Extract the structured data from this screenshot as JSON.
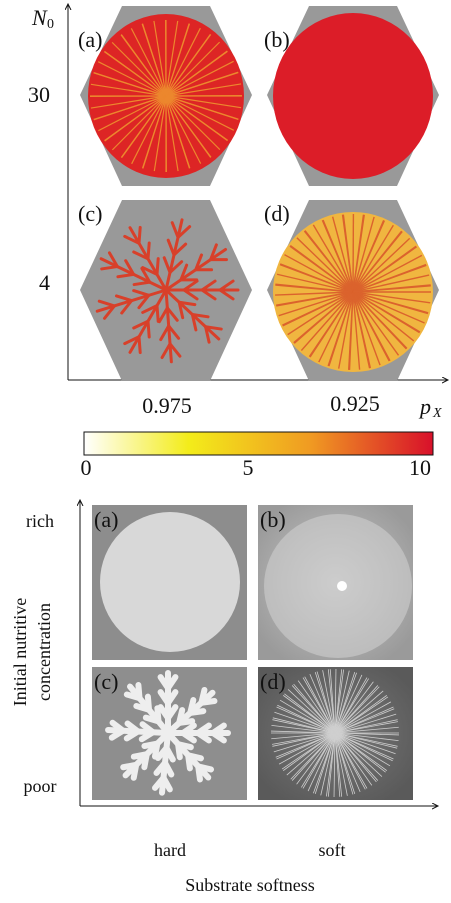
{
  "simulation": {
    "y_axis_label": "N",
    "y_axis_label_subscript": "0",
    "y_tick_labels": [
      "30",
      "4"
    ],
    "x_tick_labels": [
      "0.975",
      "0.925"
    ],
    "x_axis_label": "p",
    "x_axis_label_subscript": "X",
    "panel_labels": [
      "(a)",
      "(b)",
      "(c)",
      "(d)"
    ]
  },
  "colorbar": {
    "tick_labels": [
      "0",
      "5",
      "10"
    ]
  },
  "experiment": {
    "y_tick_labels": [
      "rich",
      "poor"
    ],
    "y_axis_title_lines": [
      "Initial nutritive",
      "concentration"
    ],
    "x_tick_labels": [
      "hard",
      "soft"
    ],
    "x_axis_title": "Substrate softness",
    "panel_labels": [
      "(a)",
      "(b)",
      "(c)",
      "(d)"
    ]
  }
}
